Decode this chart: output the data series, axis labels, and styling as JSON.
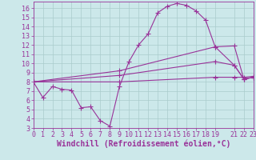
{
  "background_color": "#cce8ea",
  "grid_color": "#aacccc",
  "line_color": "#993399",
  "xlabel": "Windchill (Refroidissement éolien,°C)",
  "xlim": [
    0,
    23
  ],
  "ylim": [
    3,
    16.7
  ],
  "xticks": [
    0,
    1,
    2,
    3,
    4,
    5,
    6,
    7,
    8,
    9,
    10,
    11,
    12,
    13,
    14,
    15,
    16,
    17,
    18,
    19,
    21,
    22,
    23
  ],
  "yticks": [
    3,
    4,
    5,
    6,
    7,
    8,
    9,
    10,
    11,
    12,
    13,
    14,
    15,
    16
  ],
  "curve1_x": [
    0,
    1,
    2,
    3,
    4,
    5,
    6,
    7,
    8,
    9,
    10,
    11,
    12,
    13,
    14,
    15,
    16,
    17,
    18,
    19,
    21,
    22,
    23
  ],
  "curve1_y": [
    8.0,
    6.3,
    7.5,
    7.2,
    7.1,
    5.2,
    5.3,
    3.8,
    3.2,
    7.5,
    10.2,
    12.0,
    13.2,
    15.5,
    16.2,
    16.5,
    16.3,
    15.7,
    14.7,
    11.8,
    9.8,
    8.3,
    8.5
  ],
  "curve2_x": [
    0,
    9,
    19,
    21,
    22,
    23
  ],
  "curve2_y": [
    8.0,
    8.0,
    8.5,
    8.5,
    8.5,
    8.6
  ],
  "curve3_x": [
    0,
    9,
    19,
    21,
    22,
    23
  ],
  "curve3_y": [
    8.0,
    8.7,
    10.2,
    9.8,
    8.3,
    8.5
  ],
  "curve4_x": [
    0,
    9,
    19,
    21,
    22,
    23
  ],
  "curve4_y": [
    8.0,
    9.2,
    11.8,
    11.9,
    8.3,
    8.5
  ],
  "font_size_label": 7,
  "font_size_tick": 6
}
